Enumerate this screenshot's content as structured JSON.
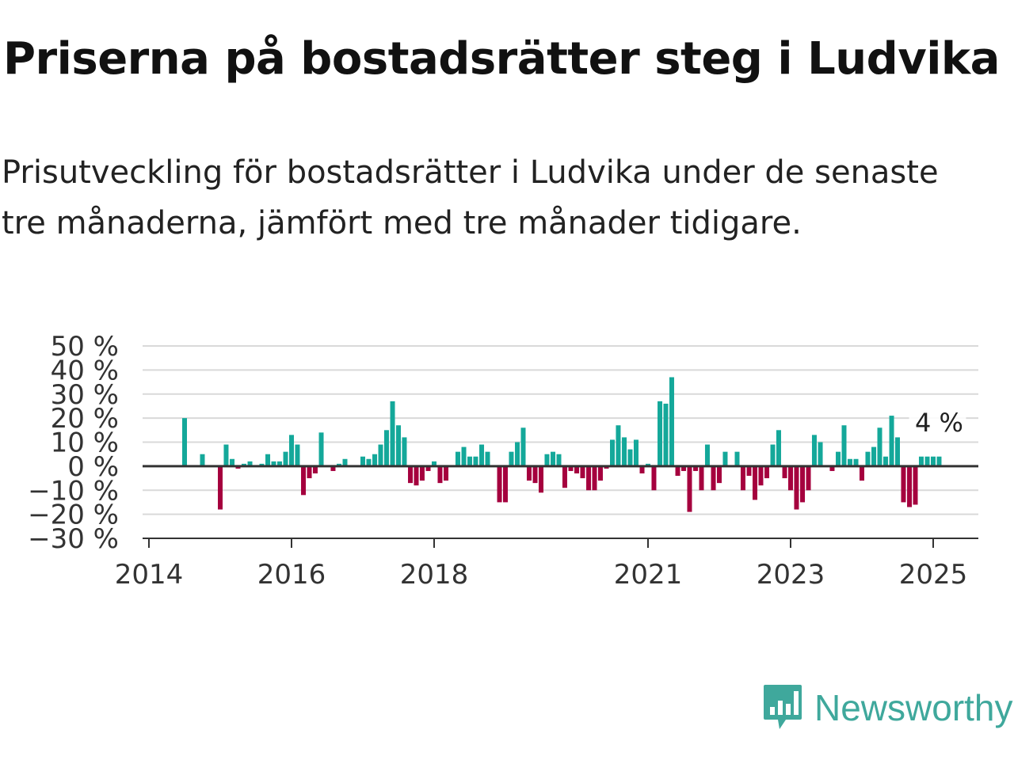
{
  "title": "Priserna på bostadsrätter steg i Ludvika",
  "subtitle": "Prisutveckling för bostadsrätter i Ludvika under de senaste tre månaderna, jämfört med tre månader tidigare.",
  "brand": {
    "name": "Newsworthy",
    "icon": "newsworthy-logo-icon",
    "color": "#3fa89c"
  },
  "chart_data": {
    "type": "bar",
    "ylim": [
      -30,
      50
    ],
    "yticks": [
      50,
      40,
      30,
      20,
      10,
      0,
      -10,
      -20,
      -30
    ],
    "ytick_labels": [
      "50 %",
      "40 %",
      "30 %",
      "20 %",
      "10 %",
      "0 %",
      "−10 %",
      "−20 %",
      "−30 %"
    ],
    "xticks": [
      "2014",
      "2016",
      "2018",
      "2021",
      "2023",
      "2025"
    ],
    "xtick_positions": [
      2014.0,
      2016.0,
      2018.0,
      2021.0,
      2023.0,
      2025.0
    ],
    "grid": true,
    "colors": {
      "positive": "#14a89a",
      "negative": "#a5003e",
      "grid": "#d9d9d9",
      "zero_line": "#333333"
    },
    "annotation": {
      "text": "4 %",
      "value": 4
    },
    "series": [
      {
        "x": [
          2014.5,
          2014.75,
          2015.0,
          2015.083,
          2015.167,
          2015.25,
          2015.333,
          2015.417,
          2015.5,
          2015.583,
          2015.667,
          2015.75,
          2015.833,
          2015.917,
          2016.0,
          2016.083,
          2016.167,
          2016.25,
          2016.333,
          2016.417,
          2016.583,
          2016.667,
          2016.75,
          2017.0,
          2017.083,
          2017.167,
          2017.25,
          2017.333,
          2017.417,
          2017.5,
          2017.583,
          2017.667,
          2017.75,
          2017.833,
          2017.917,
          2018.0,
          2018.083,
          2018.167,
          2018.333,
          2018.417,
          2018.5,
          2018.583,
          2018.667,
          2018.75,
          2018.917,
          2019.0,
          2019.083,
          2019.167,
          2019.25,
          2019.333,
          2019.417,
          2019.5,
          2019.583,
          2019.667,
          2019.75,
          2019.833,
          2019.917,
          2020.0,
          2020.083,
          2020.167,
          2020.25,
          2020.333,
          2020.417,
          2020.5,
          2020.583,
          2020.667,
          2020.75,
          2020.833,
          2020.917,
          2021.0,
          2021.083,
          2021.167,
          2021.25,
          2021.333,
          2021.417,
          2021.5,
          2021.583,
          2021.667,
          2021.75,
          2021.833,
          2021.917,
          2022.0,
          2022.083,
          2022.25,
          2022.333,
          2022.417,
          2022.5,
          2022.583,
          2022.667,
          2022.75,
          2022.833,
          2022.917,
          2023.0,
          2023.083,
          2023.167,
          2023.25,
          2023.333,
          2023.417,
          2023.583,
          2023.667,
          2023.75,
          2023.833,
          2023.917,
          2024.0,
          2024.083,
          2024.167,
          2024.25,
          2024.333,
          2024.417,
          2024.5,
          2024.583,
          2024.667,
          2024.75,
          2024.833,
          2024.917,
          2025.0,
          2025.083
        ],
        "values": [
          20,
          5,
          -18,
          9,
          3,
          -1,
          1,
          2,
          0,
          1,
          5,
          2,
          2,
          6,
          13,
          9,
          -12,
          -5,
          -3,
          14,
          -2,
          1,
          3,
          4,
          3,
          5,
          9,
          15,
          27,
          17,
          12,
          -7,
          -8,
          -6,
          -2,
          2,
          -7,
          -6,
          6,
          8,
          4,
          4,
          9,
          6,
          -15,
          -15,
          6,
          10,
          16,
          -6,
          -7,
          -11,
          5,
          6,
          5,
          -9,
          -2,
          -3,
          -5,
          -10,
          -10,
          -6,
          -1,
          11,
          17,
          12,
          7,
          11,
          -3,
          1,
          -10,
          27,
          26,
          37,
          -4,
          -2,
          -19,
          -2,
          -10,
          9,
          -10,
          -7,
          6,
          6,
          -10,
          -4,
          -14,
          -8,
          -5,
          9,
          15,
          -5,
          -10,
          -18,
          -15,
          -10,
          13,
          10,
          -2,
          6,
          17,
          3,
          3,
          -6,
          6,
          8,
          16,
          4,
          21,
          12,
          -15,
          -17,
          -16,
          4,
          4,
          4,
          4
        ]
      }
    ]
  }
}
